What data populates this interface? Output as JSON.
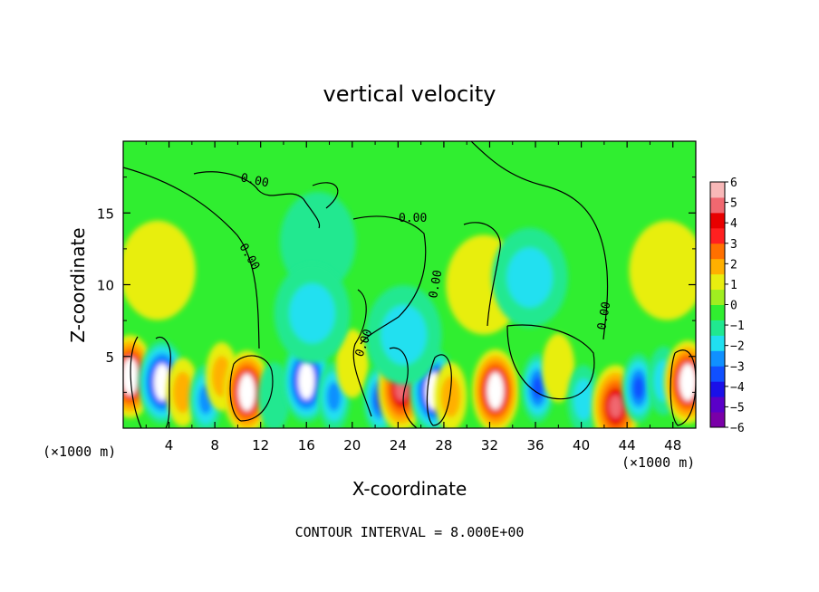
{
  "chart_data": {
    "type": "heatmap",
    "title": "vertical velocity",
    "xlabel": "X-coordinate",
    "ylabel": "Z-coordinate",
    "x_unit": "(×1000 m)",
    "y_unit": "(×1000 m)",
    "footer": "CONTOUR INTERVAL = 8.000E+00",
    "xlim": [
      0,
      50
    ],
    "ylim": [
      0,
      20
    ],
    "x_ticks": [
      4,
      8,
      12,
      16,
      20,
      24,
      28,
      32,
      36,
      40,
      44,
      48
    ],
    "y_ticks": [
      5,
      10,
      15
    ],
    "colorbar": {
      "min": -6,
      "max": 6,
      "ticks": [
        6,
        5,
        4,
        3,
        2,
        1,
        0,
        -1,
        -2,
        -3,
        -4,
        -5,
        -6
      ],
      "colors": [
        "#7a00a8",
        "#5a00c8",
        "#1a10e8",
        "#1050ff",
        "#1090ff",
        "#20e0f0",
        "#20e890",
        "#30ee30",
        "#a0ee20",
        "#e8ee10",
        "#ffb000",
        "#ff7000",
        "#ff2020",
        "#e80000",
        "#f06870",
        "#f8b8b8",
        "#ffffff"
      ]
    },
    "contour_labels": [
      "0.00",
      "0.00",
      "0.00",
      "0.00",
      "0.00",
      "0.00"
    ],
    "features": [
      {
        "x": 0.6,
        "z": 3.6,
        "w": 6
      },
      {
        "x": 3.4,
        "z": 3.2,
        "w": -6
      },
      {
        "x": 5.2,
        "z": 2.5,
        "w": 2
      },
      {
        "x": 7.2,
        "z": 2.0,
        "w": -3
      },
      {
        "x": 8.6,
        "z": 3.6,
        "w": 2
      },
      {
        "x": 10.8,
        "z": 2.5,
        "w": 6
      },
      {
        "x": 13.2,
        "z": 2.2,
        "w": -1
      },
      {
        "x": 16.0,
        "z": 3.3,
        "w": -6
      },
      {
        "x": 18.4,
        "z": 2.2,
        "w": -3
      },
      {
        "x": 20.0,
        "z": 4.5,
        "w": 1
      },
      {
        "x": 22.4,
        "z": 2.0,
        "w": -4
      },
      {
        "x": 24.3,
        "z": 2.7,
        "w": 5
      },
      {
        "x": 27.1,
        "z": 2.6,
        "w": -6
      },
      {
        "x": 28.6,
        "z": 2.2,
        "w": 2
      },
      {
        "x": 32.5,
        "z": 2.6,
        "w": 6
      },
      {
        "x": 36.2,
        "z": 2.8,
        "w": -4
      },
      {
        "x": 38.0,
        "z": 4.2,
        "w": 1
      },
      {
        "x": 40.2,
        "z": 2.0,
        "w": -2
      },
      {
        "x": 43.0,
        "z": 1.5,
        "w": 5
      },
      {
        "x": 45.0,
        "z": 2.8,
        "w": -4
      },
      {
        "x": 47.2,
        "z": 3.3,
        "w": -2
      },
      {
        "x": 49.3,
        "z": 3.2,
        "w": 6
      },
      {
        "x": 24.5,
        "z": 6.5,
        "w": -2
      },
      {
        "x": 31.5,
        "z": 10.0,
        "w": 1
      },
      {
        "x": 35.5,
        "z": 10.5,
        "w": -2
      },
      {
        "x": 3.0,
        "z": 11.0,
        "w": 1
      },
      {
        "x": 47.5,
        "z": 11.0,
        "w": 1
      },
      {
        "x": 17.0,
        "z": 13.0,
        "w": -1
      },
      {
        "x": 16.5,
        "z": 8.0,
        "w": -2
      }
    ]
  }
}
